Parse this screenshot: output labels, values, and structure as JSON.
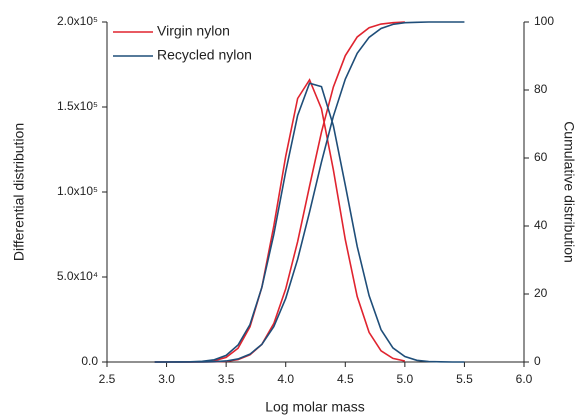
{
  "chart_data": {
    "type": "line",
    "xlabel": "Log molar mass",
    "ylabel": "Differential distribution",
    "y2label": "Cumulative distribution",
    "xlim": [
      2.5,
      6.0
    ],
    "xticks": [
      2.5,
      {
        "value": 3.0,
        "label": "3.0"
      },
      3.5,
      {
        "value": 4.0,
        "label": "4.0"
      },
      4.5,
      {
        "value": 5.0,
        "label": "5.0"
      },
      5.5,
      {
        "value": 6.0,
        "label": "6.0"
      }
    ],
    "ylim": [
      0,
      200000
    ],
    "yticks": [
      {
        "value": 0,
        "label": "0.0"
      },
      {
        "value": 50000,
        "label": "5.0x10⁴"
      },
      {
        "value": 100000,
        "label": "1.0x10⁵"
      },
      {
        "value": 150000,
        "label": "1.5x10⁵"
      },
      {
        "value": 200000,
        "label": "2.0x10⁵"
      }
    ],
    "y2lim": [
      0,
      100
    ],
    "y2ticks": [
      0,
      20,
      40,
      60,
      80,
      100
    ],
    "legend": "upper left",
    "series": [
      {
        "name": "Virgin nylon",
        "color": "#e0242f",
        "x": [
          2.9,
          3.0,
          3.1,
          3.2,
          3.3,
          3.4,
          3.5,
          3.6,
          3.7,
          3.8,
          3.9,
          4.0,
          4.1,
          4.2,
          4.3,
          4.4,
          4.5,
          4.6,
          4.7,
          4.8,
          4.9,
          5.0
        ],
        "values": [
          0,
          0,
          0,
          30,
          170,
          740,
          2700,
          8100,
          20700,
          44000,
          80000,
          121000,
          155000,
          166000,
          149000,
          113000,
          72000,
          38500,
          17400,
          6600,
          2100,
          600
        ],
        "cumulative": [
          0,
          0,
          0,
          0,
          0.01,
          0.05,
          0.2,
          0.7,
          2.1,
          5.2,
          11.3,
          21.5,
          35.4,
          51.7,
          67.6,
          80.9,
          90.1,
          95.6,
          98.3,
          99.4,
          99.8,
          100
        ]
      },
      {
        "name": "Recycled nylon",
        "color": "#1f4e79",
        "x": [
          2.9,
          3.0,
          3.1,
          3.2,
          3.3,
          3.4,
          3.5,
          3.6,
          3.7,
          3.8,
          3.9,
          4.0,
          4.1,
          4.2,
          4.3,
          4.4,
          4.5,
          4.6,
          4.7,
          4.8,
          4.9,
          5.0,
          5.1,
          5.2,
          5.3,
          5.4,
          5.5
        ],
        "values": [
          0,
          0,
          20,
          100,
          400,
          1300,
          3900,
          10000,
          22000,
          44000,
          75000,
          112000,
          145000,
          164000,
          162000,
          139000,
          104000,
          68000,
          39000,
          19000,
          8300,
          3200,
          1000,
          300,
          100,
          0,
          0
        ],
        "cumulative": [
          0,
          0,
          0,
          0,
          0.03,
          0.1,
          0.3,
          0.9,
          2.3,
          5.2,
          10.4,
          18.7,
          30.2,
          44.1,
          58.8,
          72.3,
          83.2,
          90.8,
          95.5,
          98.1,
          99.3,
          99.8,
          99.9,
          100,
          100,
          100,
          100
        ]
      }
    ]
  }
}
